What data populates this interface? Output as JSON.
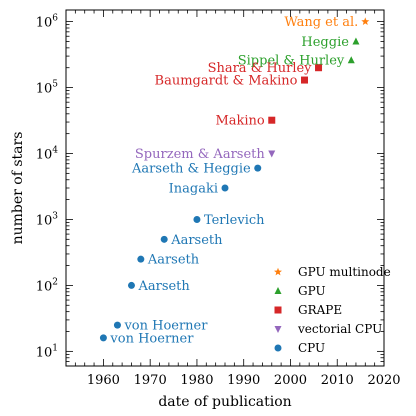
{
  "chart_data": {
    "type": "scatter",
    "xlabel": "date of publication",
    "ylabel": "number of stars",
    "xlim": [
      1952,
      2020
    ],
    "ylim": [
      6,
      1500000
    ],
    "yscale": "log",
    "x_ticks": [
      1960,
      1970,
      1980,
      1990,
      2000,
      2010,
      2020
    ],
    "y_ticks": [
      {
        "value": 10,
        "base": "10",
        "exp": "1"
      },
      {
        "value": 100,
        "base": "10",
        "exp": "2"
      },
      {
        "value": 1000,
        "base": "10",
        "exp": "3"
      },
      {
        "value": 10000,
        "base": "10",
        "exp": "4"
      },
      {
        "value": 100000,
        "base": "10",
        "exp": "5"
      },
      {
        "value": 1000000,
        "base": "10",
        "exp": "6"
      }
    ],
    "grid": false,
    "legend_position": "bottom-right",
    "series": [
      {
        "name": "GPU multinode",
        "marker": "star",
        "color": "#ff7f0e",
        "points": [
          {
            "x": 2016,
            "y": 1000000,
            "label": "Wang et al.",
            "anchor": "end"
          }
        ]
      },
      {
        "name": "GPU",
        "marker": "triangle-up",
        "color": "#2ca02c",
        "points": [
          {
            "x": 2014,
            "y": 500000,
            "label": "Heggie",
            "anchor": "end"
          },
          {
            "x": 2013,
            "y": 260000,
            "label": "Sippel & Hurley",
            "anchor": "end"
          }
        ]
      },
      {
        "name": "GRAPE",
        "marker": "square",
        "color": "#d62728",
        "points": [
          {
            "x": 2006,
            "y": 200000,
            "label": "Shara & Hurley",
            "anchor": "end"
          },
          {
            "x": 2003,
            "y": 130000,
            "label": "Baumgardt & Makino",
            "anchor": "end"
          },
          {
            "x": 1996,
            "y": 32000,
            "label": "Makino",
            "anchor": "end"
          }
        ]
      },
      {
        "name": "vectorial CPU",
        "marker": "triangle-down",
        "color": "#9467bd",
        "points": [
          {
            "x": 1996,
            "y": 10000,
            "label": "Spurzem & Aarseth",
            "anchor": "end"
          }
        ]
      },
      {
        "name": "CPU",
        "marker": "circle",
        "color": "#1f77b4",
        "points": [
          {
            "x": 1993,
            "y": 6000,
            "label": "Aarseth & Heggie",
            "anchor": "end"
          },
          {
            "x": 1986,
            "y": 3000,
            "label": "Inagaki",
            "anchor": "end"
          },
          {
            "x": 1980,
            "y": 1000,
            "label": "Terlevich",
            "anchor": "start"
          },
          {
            "x": 1973,
            "y": 500,
            "label": "Aarseth",
            "anchor": "start"
          },
          {
            "x": 1968,
            "y": 250,
            "label": "Aarseth",
            "anchor": "start"
          },
          {
            "x": 1966,
            "y": 100,
            "label": "Aarseth",
            "anchor": "start"
          },
          {
            "x": 1963,
            "y": 25,
            "label": "von Hoerner",
            "anchor": "start"
          },
          {
            "x": 1960,
            "y": 16,
            "label": "von Hoerner",
            "anchor": "start"
          }
        ]
      }
    ]
  }
}
